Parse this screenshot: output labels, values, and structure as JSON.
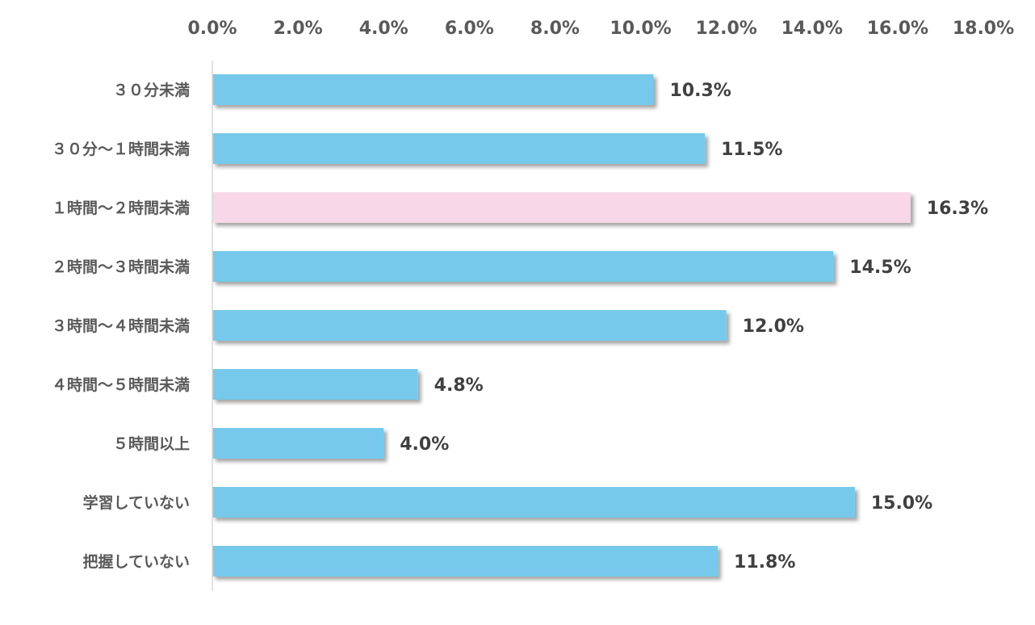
{
  "chart_data": {
    "type": "bar",
    "orientation": "horizontal",
    "title": "",
    "xlabel": "",
    "ylabel": "",
    "xlim": [
      0,
      18
    ],
    "x_tick_values": [
      0,
      2,
      4,
      6,
      8,
      10,
      12,
      14,
      16,
      18
    ],
    "x_tick_labels": [
      "0.0%",
      "2.0%",
      "4.0%",
      "6.0%",
      "8.0%",
      "10.0%",
      "12.0%",
      "14.0%",
      "16.0%",
      "18.0%"
    ],
    "x_axis_position": "top",
    "grid": false,
    "legend": "none",
    "categories": [
      "３０分未満",
      "３０分～１時間未満",
      "１時間～２時間未満",
      "２時間～３時間未満",
      "３時間～４時間未満",
      "４時間～５時間未満",
      "５時間以上",
      "学習していない",
      "把握していない"
    ],
    "values": [
      10.3,
      11.5,
      16.3,
      14.5,
      12.0,
      4.8,
      4.0,
      15.0,
      11.8
    ],
    "data_labels": [
      "10.3%",
      "11.5%",
      "16.3%",
      "14.5%",
      "12.0%",
      "4.8%",
      "4.0%",
      "15.0%",
      "11.8%"
    ],
    "highlight_index": 2,
    "colors": {
      "bar": "#76c9ea",
      "highlight": "#f8d8e8",
      "axis_line": "#d9d9d9"
    }
  }
}
